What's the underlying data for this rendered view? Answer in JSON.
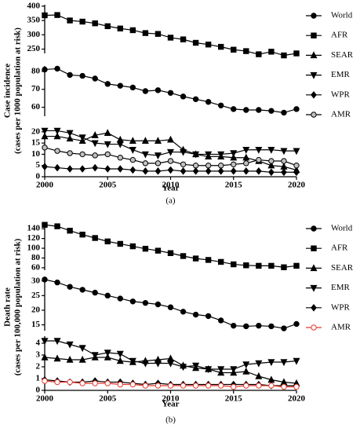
{
  "chart_data": [
    {
      "type": "line",
      "caption": "(a)",
      "xlabel": "Year",
      "ylabel": [
        "Case incidence",
        "(cases per 1000 population at risk)"
      ],
      "x": [
        2000,
        2001,
        2002,
        2003,
        2004,
        2005,
        2006,
        2007,
        2008,
        2009,
        2010,
        2011,
        2012,
        2013,
        2014,
        2015,
        2016,
        2017,
        2018,
        2019,
        2020
      ],
      "xlim": [
        2000,
        2020
      ],
      "xticks": [
        2000,
        2005,
        2010,
        2015,
        2020
      ],
      "segments": [
        {
          "ylim": [
            235,
            405
          ],
          "yticks": [
            250,
            300,
            350,
            400
          ]
        },
        {
          "ylim": [
            55,
            83
          ],
          "yticks": [
            60,
            70,
            80
          ]
        },
        {
          "ylim": [
            0,
            21
          ],
          "yticks": [
            0,
            5,
            10,
            15,
            20
          ]
        }
      ],
      "series": [
        {
          "name": "World",
          "marker": "circle",
          "color": "#000000",
          "axis": 1,
          "values": [
            81,
            81.5,
            78,
            77.5,
            76,
            73,
            72,
            71,
            69,
            69.5,
            68,
            66,
            64.5,
            63,
            61,
            59,
            58.5,
            58.5,
            58,
            57,
            59
          ]
        },
        {
          "name": "AFR",
          "marker": "square",
          "color": "#000000",
          "axis": 0,
          "values": [
            368,
            369,
            350,
            346,
            340,
            330,
            322,
            316,
            306,
            303,
            290,
            284,
            272,
            266,
            258,
            248,
            243,
            232,
            241,
            228,
            235
          ]
        },
        {
          "name": "SEAR",
          "marker": "triangle-up",
          "color": "#000000",
          "axis": 2,
          "values": [
            18,
            18,
            17,
            16,
            18.5,
            19.5,
            16.5,
            16,
            16,
            16,
            16.5,
            12,
            10,
            9,
            9,
            8.5,
            8.5,
            7,
            5,
            4.5,
            3
          ]
        },
        {
          "name": "EMR",
          "marker": "triangle-down",
          "color": "#000000",
          "axis": 2,
          "values": [
            20.5,
            20.5,
            19.5,
            17.5,
            15,
            14.5,
            14.5,
            12,
            10,
            9.5,
            11,
            11,
            10,
            10,
            10,
            10.5,
            12,
            12,
            12,
            11.5,
            11.5
          ]
        },
        {
          "name": "WPR",
          "marker": "diamond",
          "color": "#000000",
          "axis": 2,
          "values": [
            4.5,
            4,
            3.5,
            3.5,
            4,
            3.5,
            3.5,
            3,
            2.5,
            2.5,
            3,
            2.5,
            2.5,
            2.5,
            2.5,
            2.5,
            2.5,
            2.5,
            2,
            2,
            2
          ]
        },
        {
          "name": "AMR",
          "marker": "circle",
          "color": "#000000",
          "fill": "#c0c0c0",
          "axis": 2,
          "values": [
            13,
            11.5,
            10.5,
            10,
            9.5,
            10,
            8.5,
            7.5,
            6,
            6,
            7,
            5.5,
            5,
            5,
            5,
            5.5,
            6,
            7.5,
            7,
            7,
            5
          ]
        }
      ]
    },
    {
      "type": "line",
      "caption": "(b)",
      "xlabel": "Year",
      "ylabel": [
        "Death rate",
        "(cases per 100,000 population at risk)"
      ],
      "x": [
        2000,
        2001,
        2002,
        2003,
        2004,
        2005,
        2006,
        2007,
        2008,
        2009,
        2010,
        2011,
        2012,
        2013,
        2014,
        2015,
        2016,
        2017,
        2018,
        2019,
        2020
      ],
      "xlim": [
        2000,
        2020
      ],
      "xticks": [
        2000,
        2005,
        2010,
        2015,
        2020
      ],
      "segments": [
        {
          "ylim": [
            55,
            150
          ],
          "yticks": [
            60,
            80,
            100,
            120,
            140
          ]
        },
        {
          "ylim": [
            13,
            31
          ],
          "yticks": [
            15,
            20,
            25,
            30
          ]
        },
        {
          "ylim": [
            0,
            4.6
          ],
          "yticks": [
            0,
            1,
            2,
            3,
            4
          ]
        }
      ],
      "series": [
        {
          "name": "World",
          "marker": "circle",
          "color": "#000000",
          "axis": 1,
          "values": [
            30.5,
            29.5,
            28,
            27,
            26,
            25,
            24,
            23,
            22.5,
            22,
            21,
            19.5,
            18.5,
            18,
            16.5,
            14.7,
            14.5,
            14.7,
            14.5,
            13.8,
            15.3
          ]
        },
        {
          "name": "AFR",
          "marker": "square",
          "color": "#000000",
          "axis": 0,
          "values": [
            148,
            145,
            136,
            128,
            121,
            114,
            109,
            104,
            99,
            95,
            90,
            84,
            79,
            76,
            72,
            67,
            65,
            64,
            64,
            61,
            64
          ]
        },
        {
          "name": "SEAR",
          "marker": "triangle-up",
          "color": "#000000",
          "axis": 2,
          "values": [
            2.8,
            2.7,
            2.6,
            2.6,
            2.8,
            2.8,
            2.5,
            2.4,
            2.5,
            2.6,
            2.7,
            2.1,
            1.9,
            1.8,
            1.5,
            1.5,
            1.6,
            1.2,
            0.9,
            0.7,
            0.6
          ]
        },
        {
          "name": "EMR",
          "marker": "triangle-down",
          "color": "#000000",
          "axis": 2,
          "values": [
            4.2,
            4.2,
            3.9,
            3.6,
            3.0,
            3.2,
            3.1,
            2.5,
            2.3,
            2.3,
            2.3,
            2.0,
            2.1,
            1.8,
            1.8,
            1.8,
            2.2,
            2.3,
            2.4,
            2.4,
            2.5
          ]
        },
        {
          "name": "WPR",
          "marker": "diamond",
          "color": "#000000",
          "axis": 2,
          "values": [
            0.9,
            0.8,
            0.7,
            0.7,
            0.8,
            0.7,
            0.7,
            0.6,
            0.5,
            0.6,
            0.5,
            0.5,
            0.5,
            0.5,
            0.5,
            0.5,
            0.5,
            0.5,
            0.4,
            0.4,
            0.4
          ]
        },
        {
          "name": "AMR",
          "marker": "circle",
          "color": "#e8392f",
          "fill": "#ffffff",
          "axis": 2,
          "values": [
            0.8,
            0.7,
            0.7,
            0.6,
            0.6,
            0.6,
            0.5,
            0.5,
            0.4,
            0.4,
            0.4,
            0.4,
            0.4,
            0.4,
            0.4,
            0.3,
            0.4,
            0.4,
            0.4,
            0.3,
            0.3
          ]
        }
      ]
    }
  ]
}
